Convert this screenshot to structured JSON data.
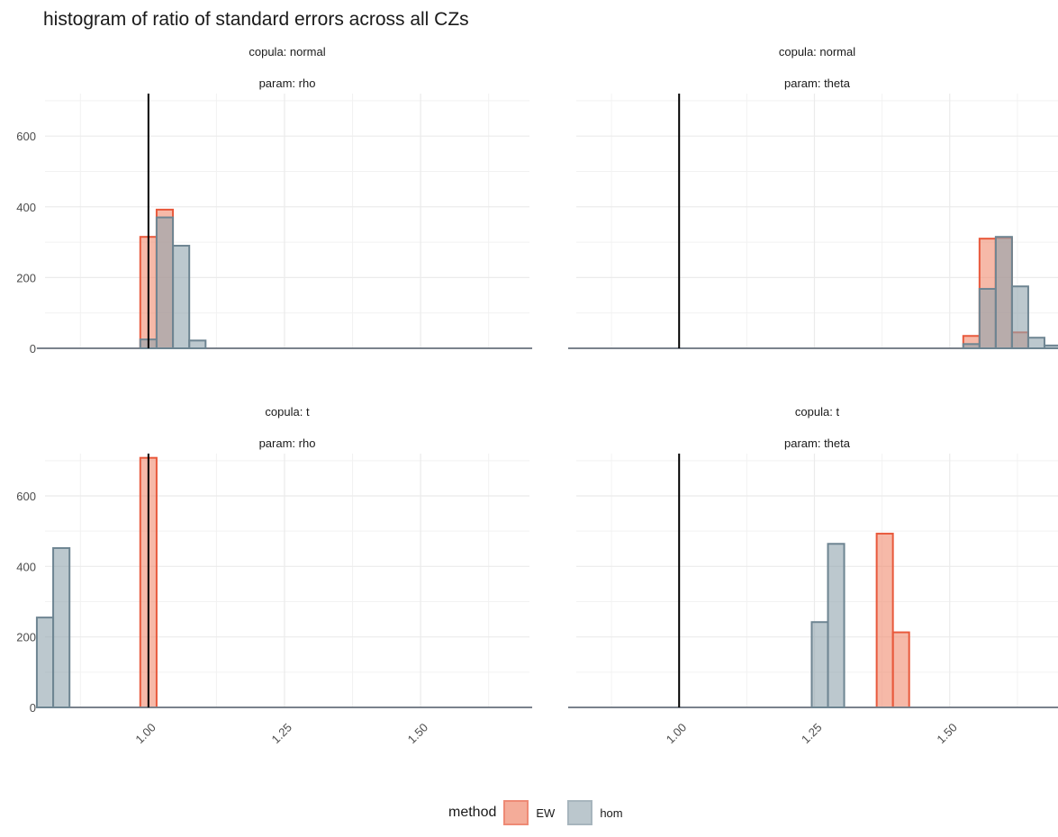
{
  "chart_data": {
    "type": "bar",
    "title": "histogram of ratio of standard errors across all CZs",
    "ylim": [
      0,
      720
    ],
    "xlim": [
      0.81,
      1.7
    ],
    "bin_width": 0.03,
    "x_ticks": [
      1.0,
      1.25,
      1.5
    ],
    "x_tick_labels": [
      "1.00",
      "1.25",
      "1.50"
    ],
    "y_ticks": [
      0,
      200,
      400,
      600
    ],
    "y_tick_labels": [
      "0",
      "200",
      "400",
      "600"
    ],
    "reference_line_x": 1.0,
    "grid": true,
    "legend": {
      "title": "method",
      "position": "bottom",
      "entries": [
        {
          "label": "EW",
          "fill": "#f08a6e",
          "stroke": "#e8593c"
        },
        {
          "label": "hom",
          "fill": "#8fa3ad",
          "stroke": "#6e8592"
        }
      ]
    },
    "panels": [
      {
        "strip1": "copula: normal",
        "strip2": "param: rho",
        "series": [
          {
            "name": "EW",
            "bins": [
              [
                1.0,
                315
              ],
              [
                1.03,
                392
              ],
              [
                1.06,
                0
              ]
            ]
          },
          {
            "name": "hom",
            "bins": [
              [
                1.0,
                25
              ],
              [
                1.03,
                370
              ],
              [
                1.06,
                290
              ],
              [
                1.09,
                22
              ]
            ]
          }
        ]
      },
      {
        "strip1": "copula: normal",
        "strip2": "param: theta",
        "series": [
          {
            "name": "EW",
            "bins": [
              [
                1.54,
                35
              ],
              [
                1.57,
                310
              ],
              [
                1.6,
                312
              ],
              [
                1.63,
                45
              ]
            ]
          },
          {
            "name": "hom",
            "bins": [
              [
                1.54,
                12
              ],
              [
                1.57,
                168
              ],
              [
                1.6,
                315
              ],
              [
                1.63,
                175
              ],
              [
                1.66,
                30
              ],
              [
                1.69,
                8
              ]
            ]
          }
        ]
      },
      {
        "strip1": "copula: t",
        "strip2": "param: rho",
        "series": [
          {
            "name": "EW",
            "bins": [
              [
                1.0,
                708
              ]
            ]
          },
          {
            "name": "hom",
            "bins": [
              [
                0.81,
                255
              ],
              [
                0.84,
                452
              ]
            ]
          }
        ]
      },
      {
        "strip1": "copula: t",
        "strip2": "param: theta",
        "series": [
          {
            "name": "EW",
            "bins": [
              [
                1.38,
                493
              ],
              [
                1.41,
                213
              ]
            ]
          },
          {
            "name": "hom",
            "bins": [
              [
                1.26,
                242
              ],
              [
                1.29,
                464
              ]
            ]
          }
        ]
      }
    ]
  }
}
